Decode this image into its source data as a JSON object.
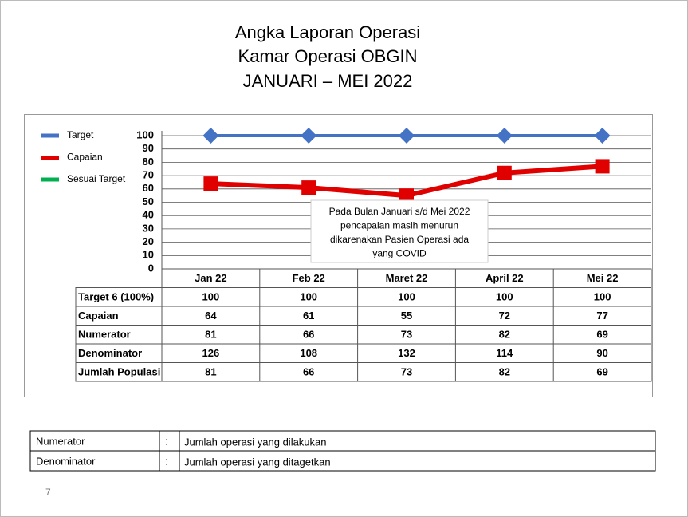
{
  "chart_data": {
    "type": "line",
    "title": [
      "Angka Laporan Operasi",
      "Kamar Operasi OBGIN",
      "JANUARI – MEI 2022"
    ],
    "categories": [
      "Jan 22",
      "Feb 22",
      "Maret 22",
      "April 22",
      "Mei 22"
    ],
    "series": [
      {
        "name": "Target",
        "color": "#4472c4",
        "marker": "diamond",
        "table_label": "Target 6 (100%)",
        "values": [
          100,
          100,
          100,
          100,
          100
        ]
      },
      {
        "name": "Capaian",
        "color": "#e00000",
        "marker": "square",
        "table_label": "Capaian",
        "values": [
          64,
          61,
          55,
          72,
          77
        ]
      },
      {
        "name": "Sesuai Target",
        "color": "#00b050",
        "marker": "none",
        "values": [
          null,
          null,
          null,
          null,
          null
        ]
      }
    ],
    "ylim": [
      0,
      100
    ],
    "yticks": [
      0,
      10,
      20,
      30,
      40,
      50,
      60,
      70,
      80,
      90,
      100
    ],
    "grid": true,
    "legend": "left",
    "annotation": [
      "Pada Bulan Januari s/d Mei 2022",
      "pencapaian  masih menurun",
      "dikarenakan Pasien Operasi ada",
      "yang COVID"
    ],
    "data_table": [
      {
        "label": "Numerator",
        "values": [
          81,
          66,
          73,
          82,
          69
        ]
      },
      {
        "label": "Denominator",
        "values": [
          126,
          108,
          132,
          114,
          90
        ]
      },
      {
        "label": "Jumlah Populasi",
        "values": [
          81,
          66,
          73,
          82,
          69
        ]
      }
    ]
  },
  "definitions": [
    {
      "term": "Numerator",
      "sep": ":",
      "text": "Jumlah operasi yang dilakukan"
    },
    {
      "term": "Denominator",
      "sep": ":",
      "text": "Jumlah operasi yang ditagetkan"
    }
  ],
  "page_number": "7"
}
